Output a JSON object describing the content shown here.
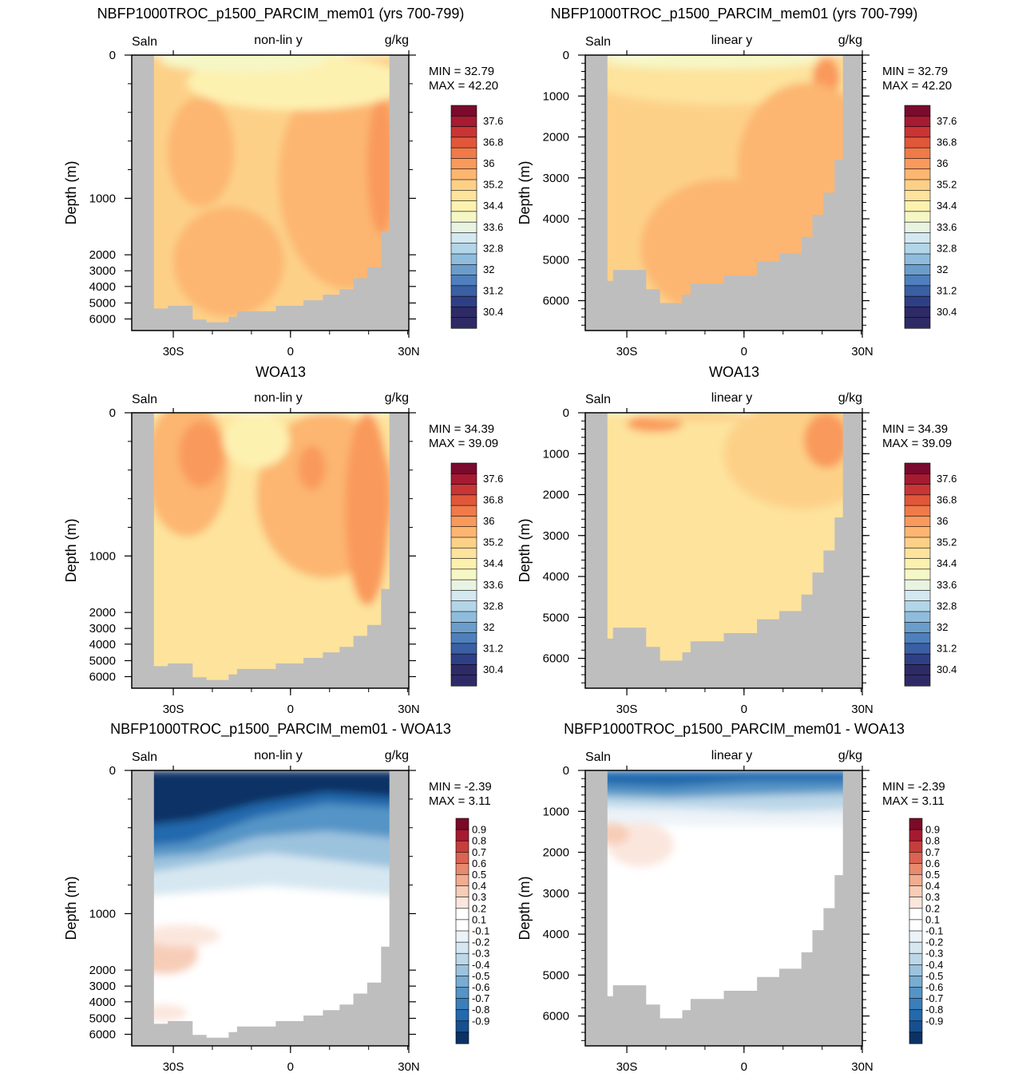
{
  "colors": {
    "land": "#bebebe",
    "abs_palette": [
      "#2e2a66",
      "#2f3f86",
      "#3a5fa3",
      "#4f7fbd",
      "#6b9dcb",
      "#8fbcdc",
      "#b3d5e8",
      "#d3e8f0",
      "#e8f3e2",
      "#f6f7c6",
      "#fdf1b0",
      "#fde39c",
      "#fdd088",
      "#fcb671",
      "#f99a5c",
      "#f07a49",
      "#e0573a",
      "#c93534",
      "#a61a32",
      "#7a0a2e"
    ],
    "diff_palette": [
      "#0b3265",
      "#16508f",
      "#2369ad",
      "#3a7fbb",
      "#5494c6",
      "#78acd2",
      "#9cc3de",
      "#bcd7e8",
      "#d6e7f1",
      "#ecf3f8",
      "#ffffff",
      "#ffffff",
      "#fbe6dd",
      "#f7cdb8",
      "#f2ad90",
      "#e88a6d",
      "#da6352",
      "#c63d3d",
      "#a8192f",
      "#7a0a28"
    ]
  },
  "chart_data": [
    {
      "type": "heatmap",
      "title": "NBFP1000TROC_p1500_PARCIM_mem01 (yrs 700-799)",
      "left_label": "Saln",
      "center_label": "non-lin y",
      "right_label": "g/kg",
      "ylabel": "Depth (m)",
      "x_ticks": [
        "30S",
        "0",
        "30N"
      ],
      "y_scale": "non-linear",
      "y_ticks": [
        "0",
        "1000",
        "2000",
        "3000",
        "4000",
        "5000",
        "6000"
      ],
      "min_label": "MIN =  32.79",
      "max_label": "MAX =  42.20",
      "colorbar_labels": [
        "37.6",
        "36.8",
        "36",
        "35.2",
        "34.4",
        "33.6",
        "32.8",
        "32",
        "31.2",
        "30.4"
      ]
    },
    {
      "type": "heatmap",
      "title": "NBFP1000TROC_p1500_PARCIM_mem01 (yrs 700-799)",
      "left_label": "Saln",
      "center_label": "linear y",
      "right_label": "g/kg",
      "ylabel": "Depth (m)",
      "x_ticks": [
        "30S",
        "0",
        "30N"
      ],
      "y_scale": "linear",
      "y_ticks": [
        "0",
        "1000",
        "2000",
        "3000",
        "4000",
        "5000",
        "6000"
      ],
      "min_label": "MIN =  32.79",
      "max_label": "MAX =  42.20",
      "colorbar_labels": [
        "37.6",
        "36.8",
        "36",
        "35.2",
        "34.4",
        "33.6",
        "32.8",
        "32",
        "31.2",
        "30.4"
      ]
    },
    {
      "type": "heatmap",
      "title": "WOA13",
      "left_label": "Saln",
      "center_label": "non-lin y",
      "right_label": "g/kg",
      "ylabel": "Depth (m)",
      "x_ticks": [
        "30S",
        "0",
        "30N"
      ],
      "y_scale": "non-linear",
      "y_ticks": [
        "0",
        "1000",
        "2000",
        "3000",
        "4000",
        "5000",
        "6000"
      ],
      "min_label": "MIN =  34.39",
      "max_label": "MAX =  39.09",
      "colorbar_labels": [
        "37.6",
        "36.8",
        "36",
        "35.2",
        "34.4",
        "33.6",
        "32.8",
        "32",
        "31.2",
        "30.4"
      ]
    },
    {
      "type": "heatmap",
      "title": "WOA13",
      "left_label": "Saln",
      "center_label": "linear y",
      "right_label": "g/kg",
      "ylabel": "Depth (m)",
      "x_ticks": [
        "30S",
        "0",
        "30N"
      ],
      "y_scale": "linear",
      "y_ticks": [
        "0",
        "1000",
        "2000",
        "3000",
        "4000",
        "5000",
        "6000"
      ],
      "min_label": "MIN =  34.39",
      "max_label": "MAX =  39.09",
      "colorbar_labels": [
        "37.6",
        "36.8",
        "36",
        "35.2",
        "34.4",
        "33.6",
        "32.8",
        "32",
        "31.2",
        "30.4"
      ]
    },
    {
      "type": "heatmap",
      "title": "NBFP1000TROC_p1500_PARCIM_mem01 - WOA13",
      "left_label": "Saln",
      "center_label": "non-lin y",
      "right_label": "g/kg",
      "ylabel": "Depth (m)",
      "x_ticks": [
        "30S",
        "0",
        "30N"
      ],
      "y_scale": "non-linear",
      "y_ticks": [
        "0",
        "1000",
        "2000",
        "3000",
        "4000",
        "5000",
        "6000"
      ],
      "min_label": "MIN =  -2.39",
      "max_label": "MAX =   3.11",
      "colorbar_labels": [
        "0.9",
        "0.8",
        "0.7",
        "0.6",
        "0.5",
        "0.4",
        "0.3",
        "0.2",
        "0.1",
        "-0.1",
        "-0.2",
        "-0.3",
        "-0.4",
        "-0.5",
        "-0.6",
        "-0.7",
        "-0.8",
        "-0.9"
      ]
    },
    {
      "type": "heatmap",
      "title": "NBFP1000TROC_p1500_PARCIM_mem01 - WOA13",
      "left_label": "Saln",
      "center_label": "linear y",
      "right_label": "g/kg",
      "ylabel": "Depth (m)",
      "x_ticks": [
        "30S",
        "0",
        "30N"
      ],
      "y_scale": "linear",
      "y_ticks": [
        "0",
        "1000",
        "2000",
        "3000",
        "4000",
        "5000",
        "6000"
      ],
      "min_label": "MIN =  -2.39",
      "max_label": "MAX =   3.11",
      "colorbar_labels": [
        "0.9",
        "0.8",
        "0.7",
        "0.6",
        "0.5",
        "0.4",
        "0.3",
        "0.2",
        "0.1",
        "-0.1",
        "-0.2",
        "-0.3",
        "-0.4",
        "-0.5",
        "-0.6",
        "-0.7",
        "-0.8",
        "-0.9"
      ]
    }
  ]
}
